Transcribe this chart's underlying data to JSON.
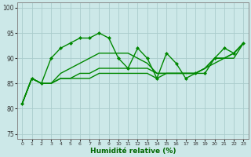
{
  "xlabel": "Humidité relative (%)",
  "ylim": [
    74,
    101
  ],
  "xlim": [
    -0.5,
    23.5
  ],
  "yticks": [
    75,
    80,
    85,
    90,
    95,
    100
  ],
  "xtick_labels": [
    "0",
    "1",
    "2",
    "3",
    "4",
    "5",
    "6",
    "7",
    "8",
    "9",
    "10",
    "11",
    "12",
    "13",
    "14",
    "15",
    "16",
    "17",
    "18",
    "19",
    "20",
    "21",
    "22",
    "23"
  ],
  "bg_color": "#cce8e8",
  "grid_color": "#aacccc",
  "line_color": "#008800",
  "lines": [
    {
      "y": [
        81,
        86,
        85,
        85,
        86,
        86,
        86,
        86,
        87,
        87,
        87,
        87,
        87,
        87,
        86,
        87,
        87,
        87,
        87,
        88,
        90,
        90,
        91,
        93
      ],
      "markers": false,
      "lw": 1.0
    },
    {
      "y": [
        81,
        86,
        85,
        90,
        92,
        93,
        94,
        94,
        95,
        94,
        90,
        88,
        92,
        90,
        86,
        91,
        89,
        86,
        87,
        87,
        90,
        92,
        91,
        93
      ],
      "markers": true,
      "lw": 1.0
    },
    {
      "y": [
        81,
        86,
        85,
        85,
        87,
        88,
        89,
        90,
        91,
        91,
        91,
        91,
        90,
        89,
        87,
        87,
        87,
        87,
        87,
        88,
        90,
        90,
        91,
        93
      ],
      "markers": false,
      "lw": 1.0
    },
    {
      "y": [
        81,
        86,
        85,
        85,
        86,
        86,
        87,
        87,
        88,
        88,
        88,
        88,
        88,
        88,
        87,
        87,
        87,
        87,
        87,
        88,
        89,
        90,
        90,
        93
      ],
      "markers": false,
      "lw": 1.0
    }
  ]
}
